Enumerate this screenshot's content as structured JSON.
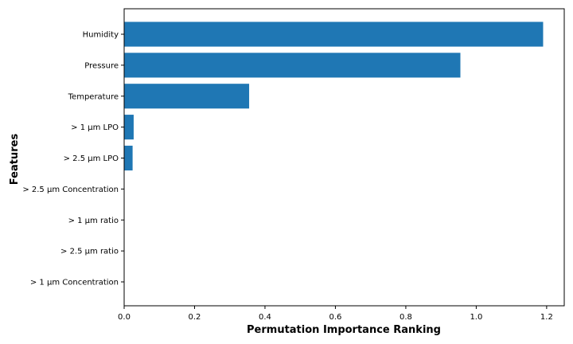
{
  "chart_data": {
    "type": "bar",
    "orientation": "horizontal",
    "title": "",
    "xlabel": "Permutation Importance Ranking",
    "ylabel": "Features",
    "categories": [
      "Humidity",
      "Pressure",
      "Temperature",
      "> 1 µm LPO",
      "> 2.5 µm LPO",
      "> 2.5 µm Concentration",
      "> 1 µm ratio",
      "> 2.5 µm ratio",
      "> 1 µm Concentration"
    ],
    "values": [
      1.19,
      0.955,
      0.355,
      0.027,
      0.024,
      0.0,
      0.0,
      0.0,
      0.0
    ],
    "xlim": [
      0,
      1.25
    ],
    "xticks": [
      0.0,
      0.2,
      0.4,
      0.6,
      0.8,
      1.0,
      1.2
    ],
    "xtick_labels": [
      "0.0",
      "0.2",
      "0.4",
      "0.6",
      "0.8",
      "1.0",
      "1.2"
    ],
    "bar_color": "#1f77b4",
    "grid": false
  }
}
